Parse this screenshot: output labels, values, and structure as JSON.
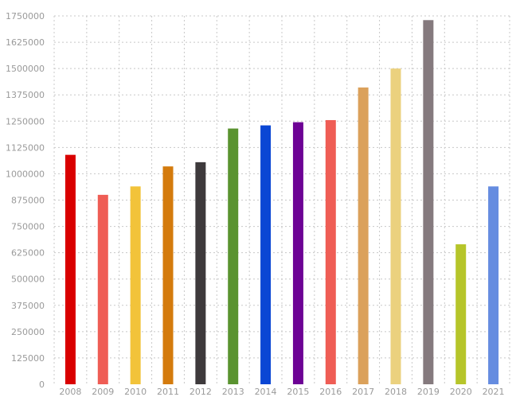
{
  "chart_data": {
    "type": "bar",
    "categories": [
      "2008",
      "2009",
      "2010",
      "2011",
      "2012",
      "2013",
      "2014",
      "2015",
      "2016",
      "2017",
      "2018",
      "2019",
      "2020",
      "2021"
    ],
    "values": [
      1090000,
      900000,
      940000,
      1035000,
      1055000,
      1215000,
      1230000,
      1245000,
      1255000,
      1410000,
      1500000,
      1730000,
      665000,
      940000
    ],
    "colors": [
      "#d90000",
      "#ef5d55",
      "#f2c33a",
      "#d47b0d",
      "#3e3a3c",
      "#5a9330",
      "#0a46d4",
      "#6d0395",
      "#ef5d55",
      "#dba15b",
      "#ebd17e",
      "#857a7e",
      "#b6c52a",
      "#658ce0"
    ],
    "yticks": [
      "0",
      "125000",
      "250000",
      "375000",
      "500000",
      "625000",
      "750000",
      "875000",
      "1000000",
      "1125000",
      "1250000",
      "1375000",
      "1500000",
      "1625000",
      "1750000"
    ],
    "ylim": [
      0,
      1750000
    ],
    "grid": true,
    "title": "",
    "xlabel": "",
    "ylabel": ""
  }
}
